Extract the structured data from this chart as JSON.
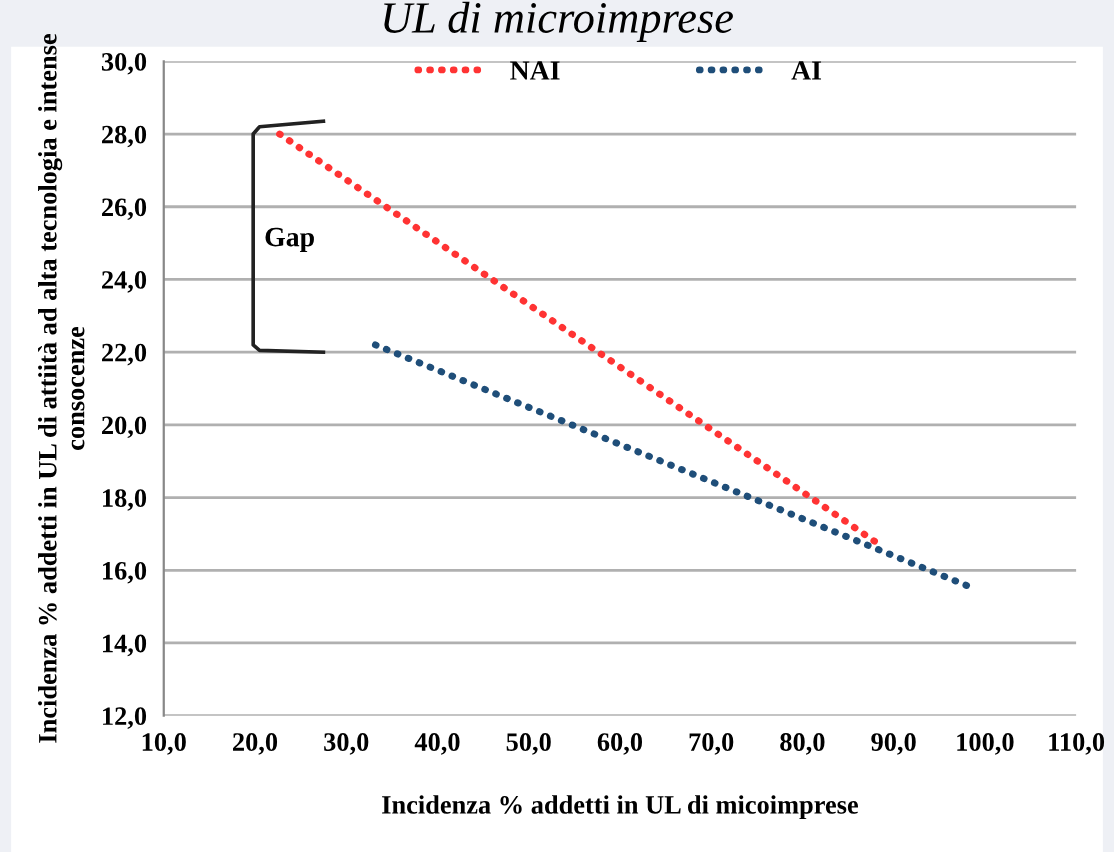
{
  "chart_data": {
    "type": "line",
    "title": "UL di microimprese",
    "xlabel": "Incidenza % addetti in UL di micoimprese",
    "ylabel": "Incidenza % addetti in UL di attiità ad alta tecnologia e intense consocenze",
    "series": [
      {
        "name": "NAI",
        "color": "#ff3333",
        "x": [
          22.7,
          87.9
        ],
        "values": [
          28.0,
          16.8
        ]
      },
      {
        "name": "AI",
        "color": "#1f4e79",
        "x": [
          33.2,
          98.8
        ],
        "values": [
          22.2,
          15.5
        ]
      }
    ],
    "xlim": [
      10,
      110
    ],
    "xticks": [
      {
        "value": 10,
        "label": "10,0"
      },
      {
        "value": 20,
        "label": "20,0"
      },
      {
        "value": 30,
        "label": "30,0"
      },
      {
        "value": 40,
        "label": "40,0"
      },
      {
        "value": 50,
        "label": "50,0"
      },
      {
        "value": 60,
        "label": "60,0"
      },
      {
        "value": 70,
        "label": "70,0"
      },
      {
        "value": 80,
        "label": "80,0"
      },
      {
        "value": 90,
        "label": "90,0"
      },
      {
        "value": 100,
        "label": "100,0"
      },
      {
        "value": 110,
        "label": "110,0"
      }
    ],
    "ylim": [
      12,
      30
    ],
    "yticks": [
      {
        "value": 12,
        "label": "12,0"
      },
      {
        "value": 14,
        "label": "14,0"
      },
      {
        "value": 16,
        "label": "16,0"
      },
      {
        "value": 18,
        "label": "18,0"
      },
      {
        "value": 20,
        "label": "20,0"
      },
      {
        "value": 22,
        "label": "22,0"
      },
      {
        "value": 24,
        "label": "24,0"
      },
      {
        "value": 26,
        "label": "26,0"
      },
      {
        "value": 28,
        "label": "28,0"
      },
      {
        "value": 30,
        "label": "30,0"
      }
    ],
    "annotations": [
      "Gap"
    ],
    "grid": "y",
    "legend": "top",
    "line_style": "dotted",
    "marker": "none"
  }
}
